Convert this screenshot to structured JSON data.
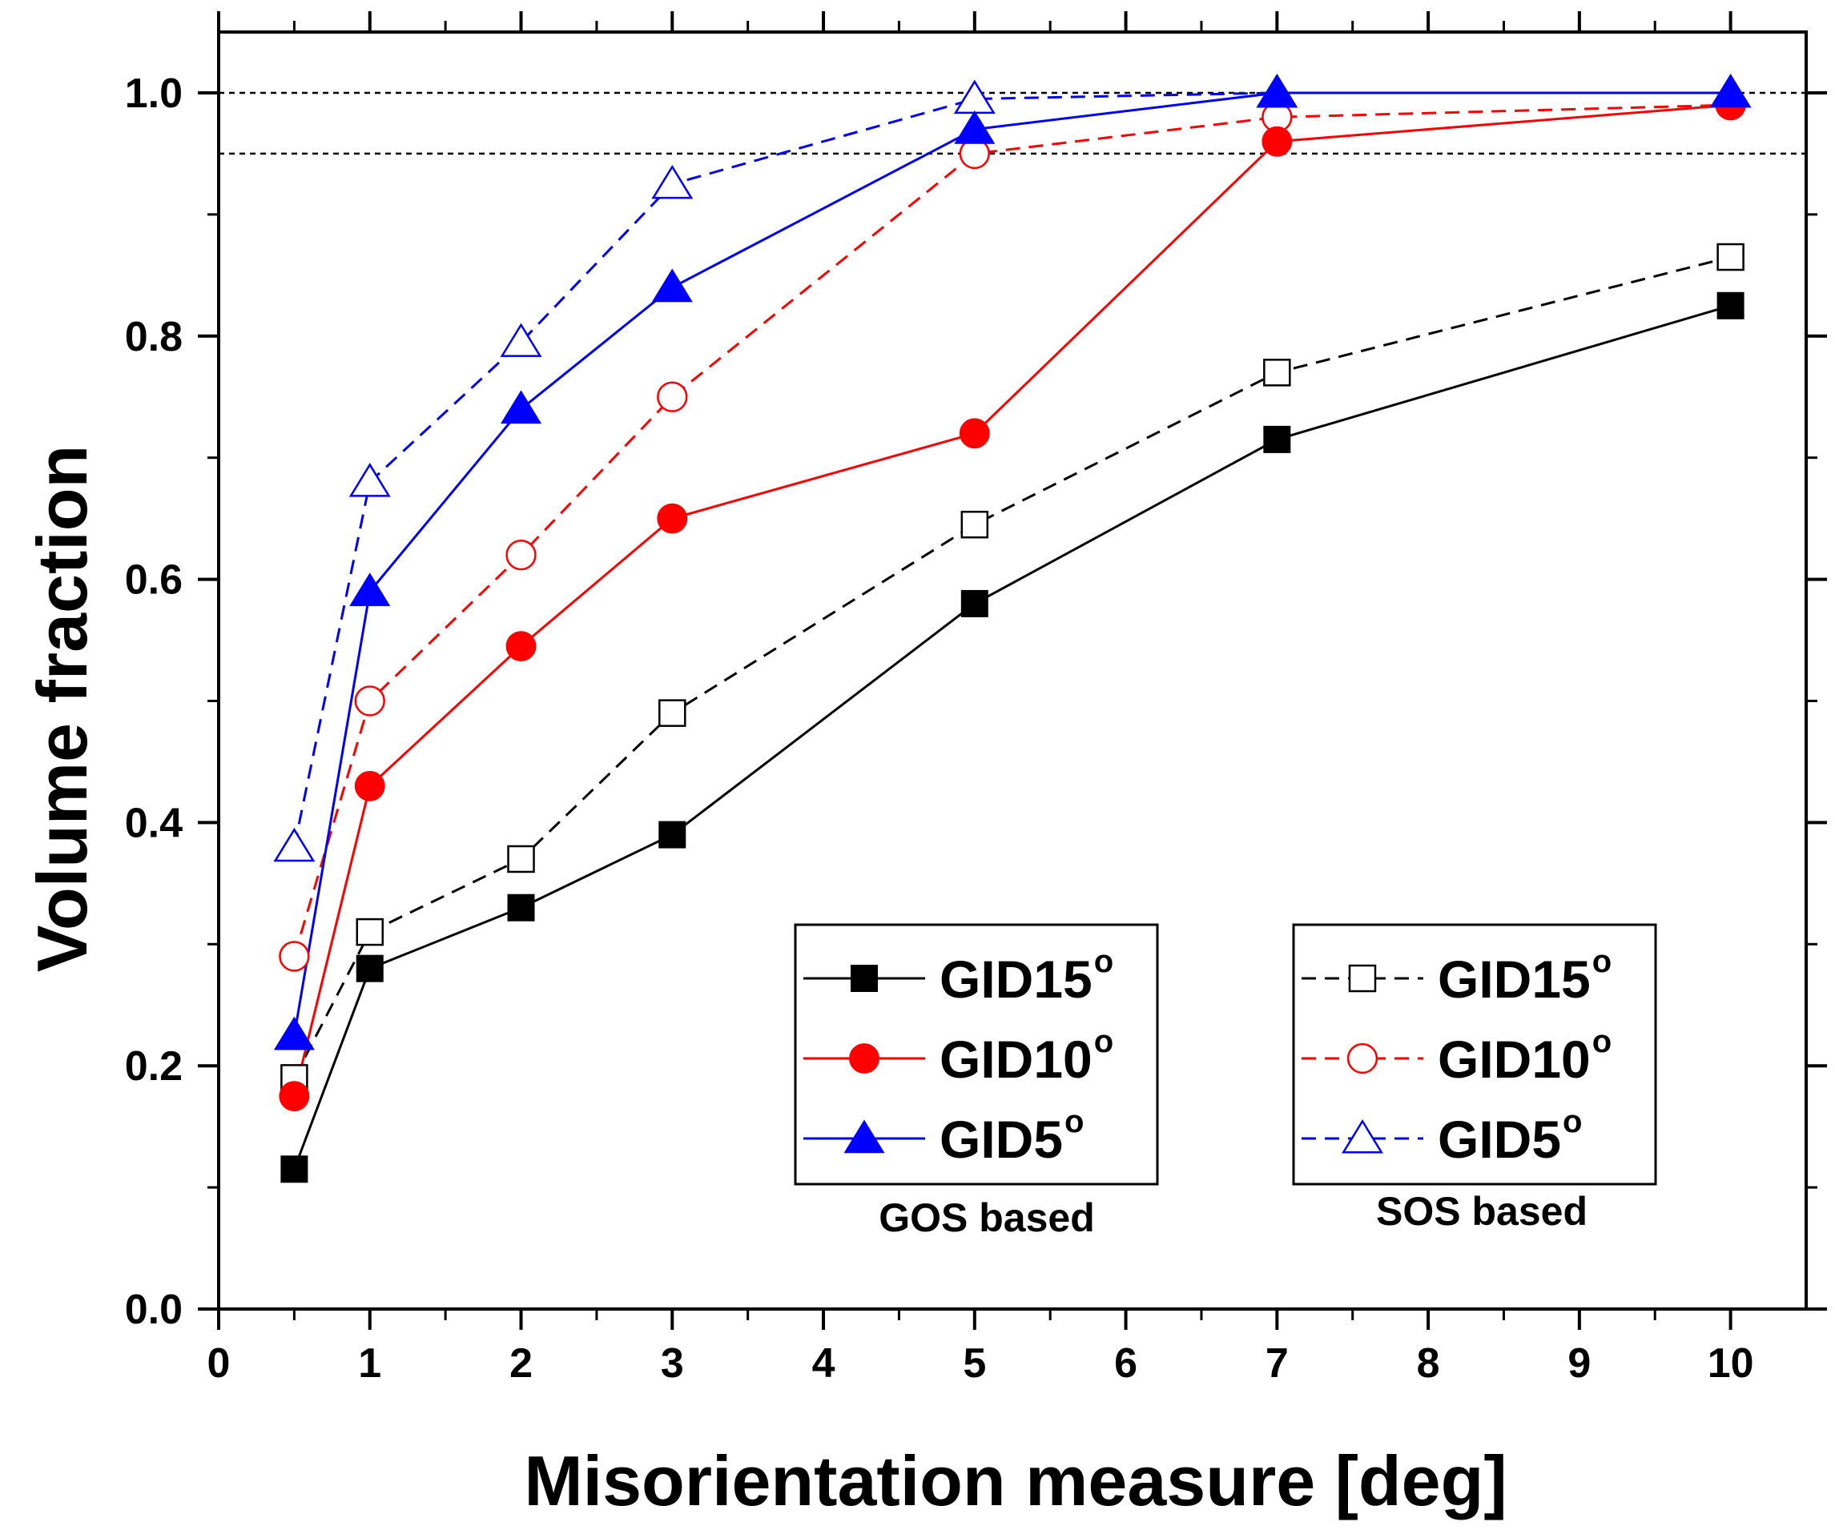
{
  "chart_data": {
    "type": "line",
    "xlabel": "Misorientation measure [deg]",
    "ylabel": "Volume fraction",
    "xlim": [
      0,
      10.5
    ],
    "ylim": [
      0,
      1.05
    ],
    "x_ticks": [
      "0",
      "1",
      "2",
      "3",
      "4",
      "5",
      "6",
      "7",
      "8",
      "9",
      "10"
    ],
    "y_ticks": [
      "0.0",
      "0.2",
      "0.4",
      "0.6",
      "0.8",
      "1.0"
    ],
    "reference_lines": [
      1.0,
      0.95
    ],
    "x": [
      0.5,
      1,
      2,
      3,
      5,
      7,
      10
    ],
    "series": [
      {
        "name": "GID15",
        "group": "GOS based",
        "color": "#000000",
        "marker": "square",
        "filled": true,
        "dashed": false,
        "values": [
          0.115,
          0.28,
          0.33,
          0.39,
          0.58,
          0.715,
          0.825
        ]
      },
      {
        "name": "GID10",
        "group": "GOS based",
        "color": "#ff0000",
        "marker": "circle",
        "filled": true,
        "dashed": false,
        "values": [
          0.175,
          0.43,
          0.545,
          0.65,
          0.72,
          0.96,
          0.99
        ]
      },
      {
        "name": "GID5",
        "group": "GOS based",
        "color": "#0000ff",
        "marker": "triangle",
        "filled": true,
        "dashed": false,
        "values": [
          0.225,
          0.59,
          0.74,
          0.84,
          0.97,
          1.0,
          1.0
        ]
      },
      {
        "name": "GID15",
        "group": "SOS based",
        "color": "#000000",
        "marker": "square",
        "filled": false,
        "dashed": true,
        "values": [
          0.19,
          0.31,
          0.37,
          0.49,
          0.645,
          0.77,
          0.865
        ]
      },
      {
        "name": "GID10",
        "group": "SOS based",
        "color": "#ff0000",
        "marker": "circle",
        "filled": false,
        "dashed": true,
        "values": [
          0.29,
          0.5,
          0.62,
          0.75,
          0.95,
          0.98,
          0.99
        ]
      },
      {
        "name": "GID5",
        "group": "SOS based",
        "color": "#0000ff",
        "marker": "triangle",
        "filled": false,
        "dashed": true,
        "values": [
          0.38,
          0.68,
          0.795,
          0.925,
          0.995,
          1.0,
          1.0
        ]
      }
    ],
    "legends": [
      {
        "caption": "GOS based",
        "entries": [
          {
            "label": "GID15",
            "sup": "o"
          },
          {
            "label": "GID10",
            "sup": "o"
          },
          {
            "label": "GID5",
            "sup": "o"
          }
        ]
      },
      {
        "caption": "SOS based",
        "entries": [
          {
            "label": "GID15",
            "sup": "o"
          },
          {
            "label": "GID10",
            "sup": "o"
          },
          {
            "label": "GID5",
            "sup": "o"
          }
        ]
      }
    ]
  }
}
